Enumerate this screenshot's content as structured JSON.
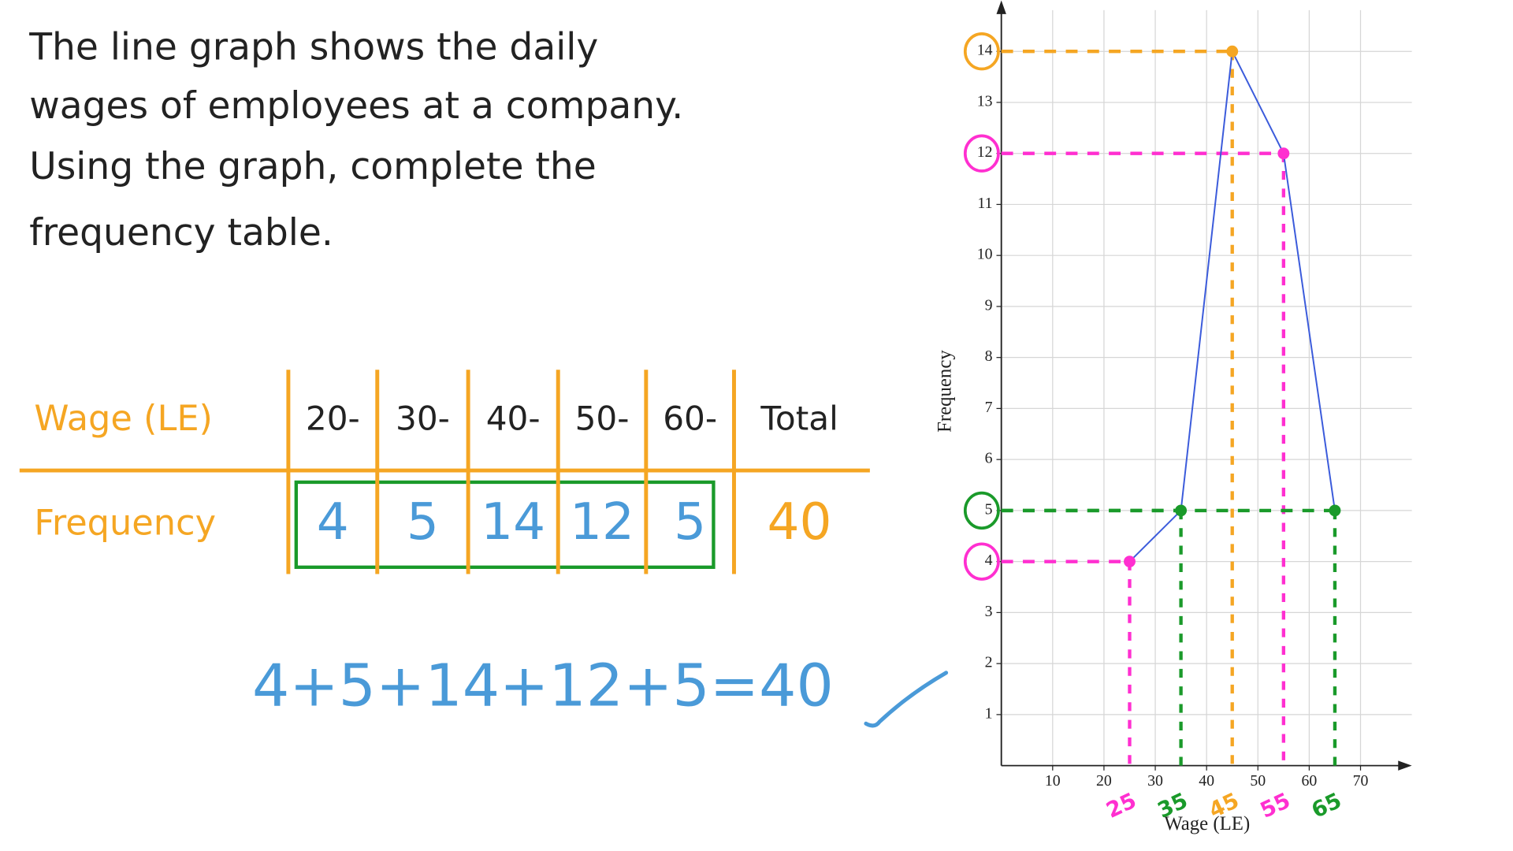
{
  "problem": {
    "lines": [
      "The line graph shows the daily",
      "wages of employees at a company.",
      "Using the graph, complete the",
      "frequency table."
    ]
  },
  "table": {
    "header": [
      "Wage (LE)",
      "20-",
      "30-",
      "40-",
      "50-",
      "60-",
      "Total"
    ],
    "rows": [
      [
        "Frequency",
        4,
        5,
        14,
        12,
        5,
        40
      ]
    ]
  },
  "equation": "4+5+14+12+5=40",
  "chart_data": {
    "type": "line",
    "x_label": "Wage (LE)",
    "y_label": "Frequency",
    "x": [
      25,
      35,
      45,
      55,
      65
    ],
    "values": [
      4,
      5,
      14,
      12,
      5
    ],
    "color": "#3b5bdb",
    "guide_colors": [
      "#ff2fd0",
      "#1a9a2a",
      "#f5a623",
      "#ff2fd0",
      "#1a9a2a"
    ],
    "xlim": [
      0,
      80
    ],
    "ylim": [
      0,
      15
    ],
    "xticks": [
      10,
      20,
      30,
      40,
      50,
      60,
      70
    ],
    "yticks": [
      1,
      2,
      3,
      4,
      5,
      6,
      7,
      8,
      9,
      10,
      11,
      12,
      13,
      14
    ],
    "grid": true
  }
}
